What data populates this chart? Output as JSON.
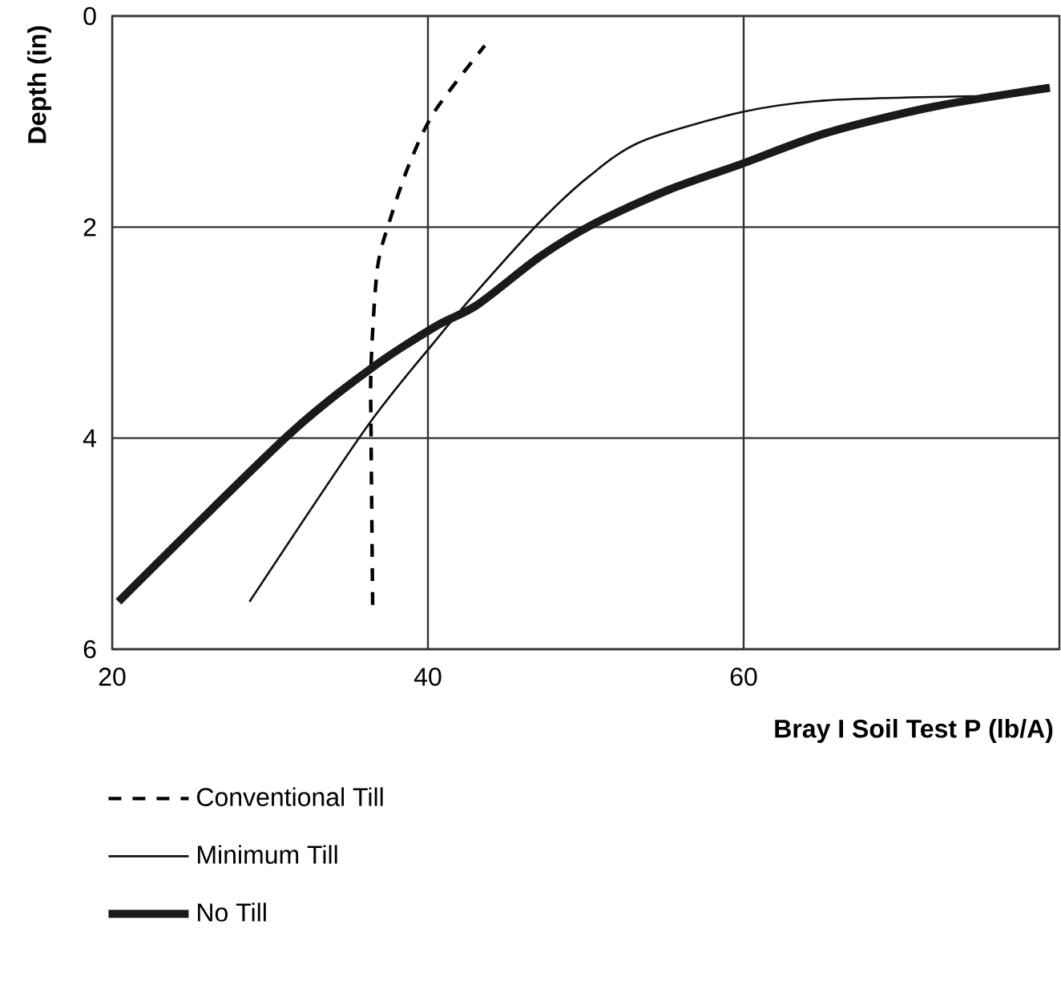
{
  "chart_data": {
    "type": "line",
    "xlabel": "Bray I Soil Test P (lb/A)",
    "ylabel": "Depth (in)",
    "xlim": [
      20,
      80
    ],
    "ylim": [
      6,
      0
    ],
    "xticks": [
      20,
      40,
      60
    ],
    "yticks": [
      0,
      2,
      4,
      6
    ],
    "grid": true,
    "legend": "bottom",
    "series": [
      {
        "name": "Conventional Till",
        "color": "#000000",
        "line_style": "dashed",
        "x": [
          36.5,
          36.4,
          36.4,
          36.8,
          37.6,
          38.8,
          40.4,
          43.6
        ],
        "values": [
          5.58,
          4.0,
          3.3,
          2.39,
          1.93,
          1.41,
          0.91,
          0.28
        ]
      },
      {
        "name": "Minimum Till",
        "color": "#111111",
        "line_style": "solid",
        "x": [
          28.7,
          36.1,
          40.4,
          43.1,
          47.1,
          50.2,
          53.5,
          59.9,
          65.2,
          74.6
        ],
        "values": [
          5.55,
          3.9,
          3.09,
          2.61,
          1.95,
          1.52,
          1.19,
          0.91,
          0.8,
          0.76
        ]
      },
      {
        "name": "No Till",
        "color": "#1a1a1a",
        "line_style": "solid",
        "x": [
          20.4,
          31.1,
          36.4,
          40.5,
          43.1,
          47.1,
          50.5,
          55.2,
          59.9,
          65.2,
          72.0,
          79.4
        ],
        "values": [
          5.55,
          3.98,
          3.34,
          2.94,
          2.74,
          2.28,
          1.97,
          1.65,
          1.4,
          1.11,
          0.86,
          0.68
        ]
      }
    ]
  }
}
